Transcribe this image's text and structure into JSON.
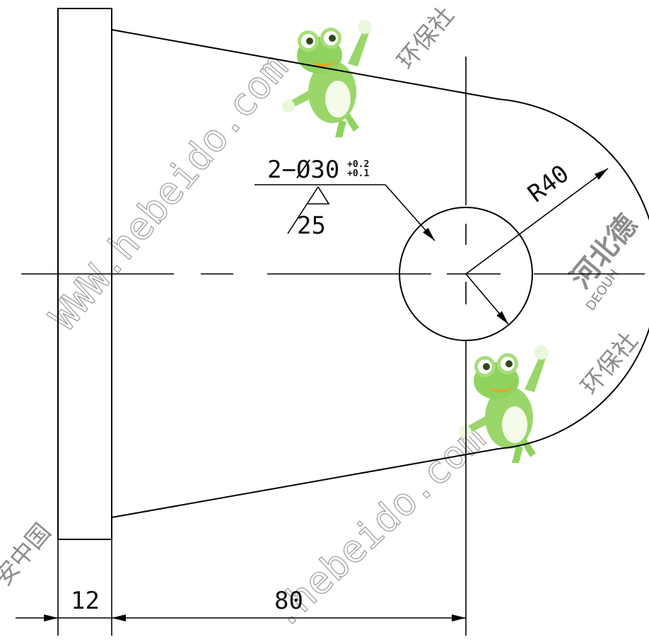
{
  "dimensions": {
    "plate_thickness": "12",
    "length": "80",
    "radius": "R40",
    "hole_callout": "2−Ø30",
    "hole_tol_upper": "+0.2",
    "hole_tol_lower": "+0.1",
    "roughness": "25"
  },
  "watermarks": {
    "url_1": "WWW.hebeido.com",
    "url_2": ".hebeido.com",
    "brand_cn_1": "河北德",
    "brand_cn_2": "环保社",
    "brand_cn_3": "环保社",
    "brand_cn_4": "安中国",
    "brand_latin": "DEOUH"
  },
  "colors": {
    "line": "#000000",
    "watermark": "#9a9a9a",
    "mascot_green": "#8fd35e"
  },
  "icons": [
    "frog-mascot-icon"
  ]
}
